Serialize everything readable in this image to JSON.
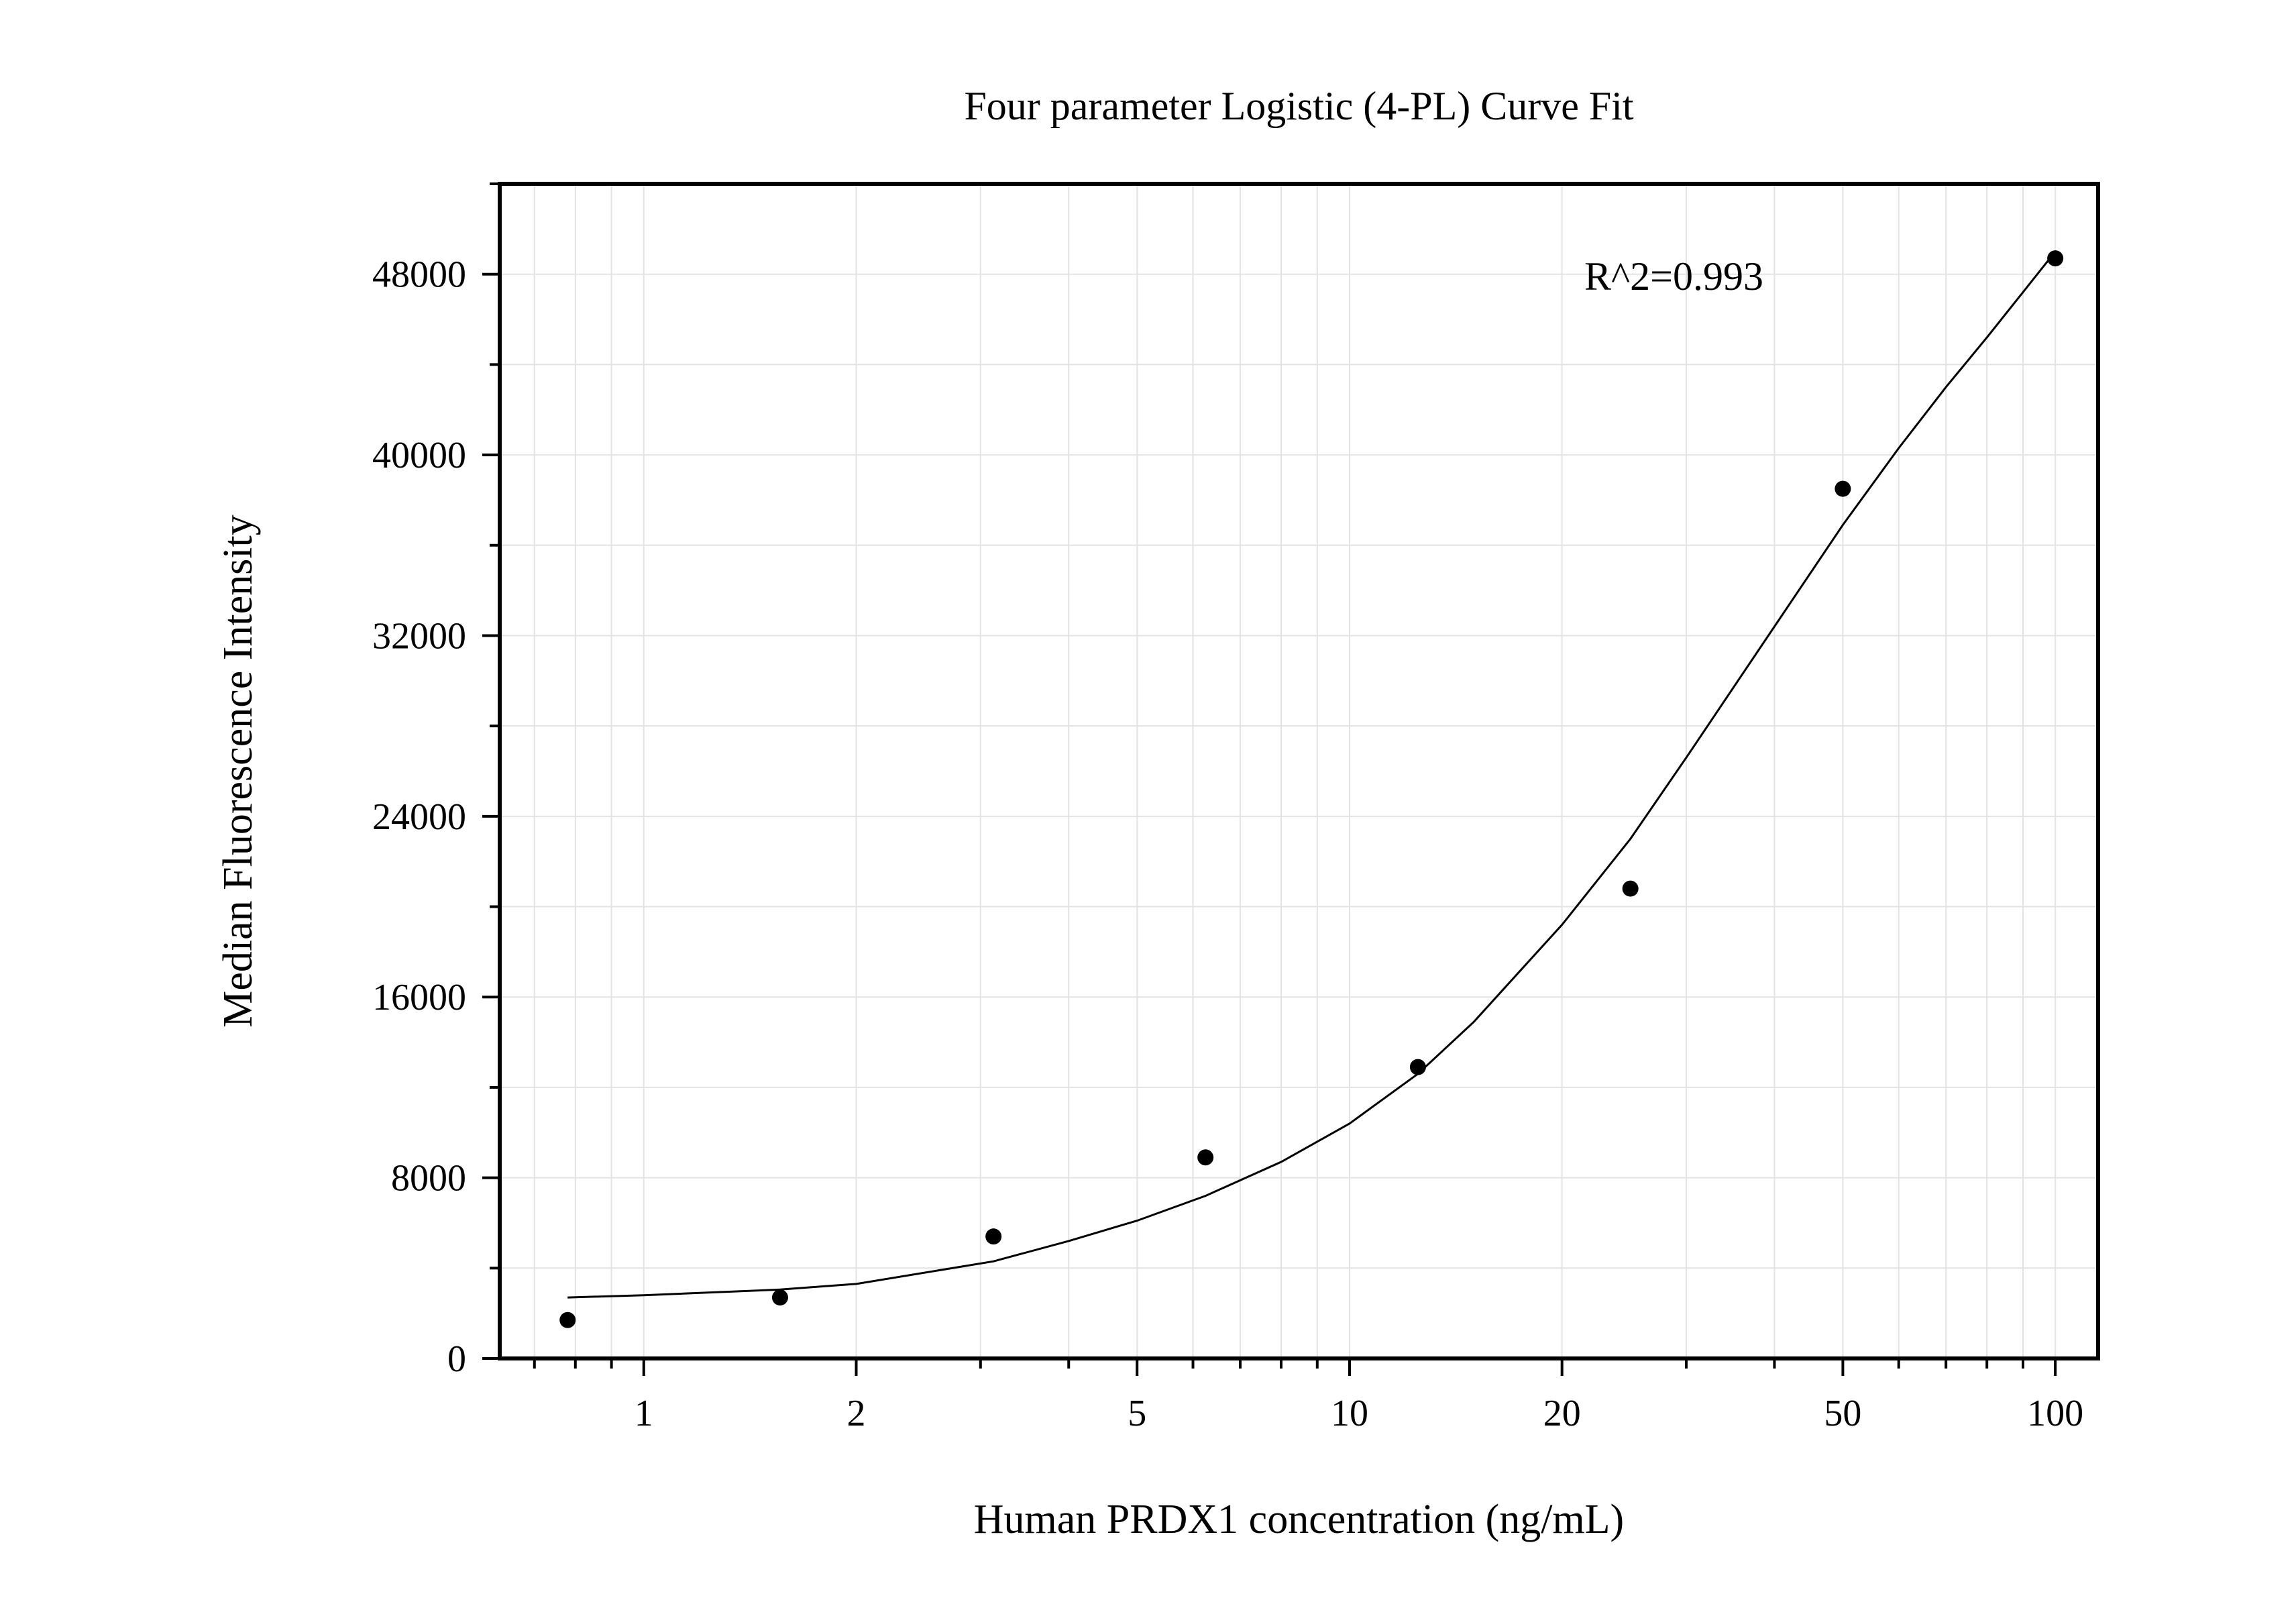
{
  "chart_data": {
    "type": "scatter",
    "title": "Four parameter Logistic (4-PL) Curve Fit",
    "xlabel": "Human PRDX1 concentration (ng/mL)",
    "ylabel": "Median Fluorescence Intensity",
    "x_scale": "log",
    "xlim": [
      0.625,
      115
    ],
    "ylim": [
      0,
      52000
    ],
    "x_ticks": [
      1,
      2,
      5,
      10,
      20,
      50,
      100
    ],
    "x_tick_labels": [
      "1",
      "2",
      "5",
      "10",
      "20",
      "50",
      "100"
    ],
    "y_ticks": [
      0,
      8000,
      16000,
      24000,
      32000,
      40000,
      48000
    ],
    "y_tick_labels": [
      "0",
      "8000",
      "16000",
      "24000",
      "32000",
      "40000",
      "48000"
    ],
    "grid": true,
    "series": [
      {
        "kind": "points",
        "color": "#000000",
        "x": [
          0.78,
          1.56,
          3.13,
          6.25,
          12.5,
          25,
          50,
          100
        ],
        "y": [
          1700,
          2700,
          5400,
          8900,
          12900,
          20800,
          38500,
          48700
        ]
      },
      {
        "kind": "fit-curve",
        "color": "#000000",
        "x": [
          0.78,
          1.0,
          1.56,
          2.0,
          3.13,
          4.0,
          5.0,
          6.25,
          8.0,
          10.0,
          12.5,
          15.0,
          20.0,
          25.0,
          30.0,
          40.0,
          50.0,
          60.0,
          70.0,
          80.0,
          90.0,
          100.0
        ],
        "y": [
          2700,
          2800,
          3050,
          3300,
          4300,
          5200,
          6100,
          7200,
          8700,
          10400,
          12600,
          14900,
          19200,
          23000,
          26600,
          32400,
          36900,
          40300,
          43000,
          45200,
          47200,
          49000
        ]
      }
    ],
    "annotations": [
      {
        "text": "R^2=0.993"
      }
    ]
  }
}
